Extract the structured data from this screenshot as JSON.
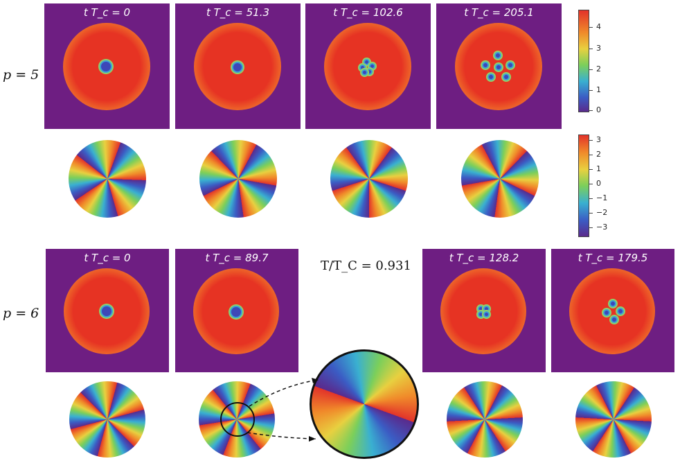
{
  "rows": [
    {
      "label": "p = 5",
      "times": [
        "t T_c = 0",
        "t T_c = 51.3",
        "t T_c = 102.6",
        "t T_c = 205.1"
      ]
    },
    {
      "label": "p = 6",
      "times": [
        "t T_c = 0",
        "t T_c = 89.7",
        "t T_c = 128.2",
        "t T_c = 179.5"
      ]
    }
  ],
  "temperature_label": "T/T_C = 0.931",
  "colorbar_density": {
    "ticks": [
      "4",
      "3",
      "2",
      "1",
      "0"
    ]
  },
  "colorbar_phase": {
    "ticks": [
      "3",
      "2",
      "1",
      "0",
      "−1",
      "−2",
      "−3"
    ]
  },
  "colors": {
    "background_purple": "#6e1e82",
    "density_red": "#e63323",
    "phase_colormap": [
      "#5a2a8c",
      "#3b5cc4",
      "#3ab0d0",
      "#7ccf5a",
      "#e8d040",
      "#f08a2a",
      "#e2332a"
    ]
  }
}
